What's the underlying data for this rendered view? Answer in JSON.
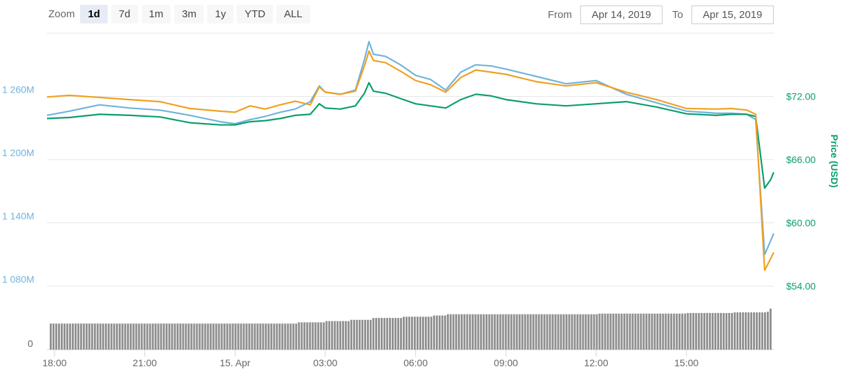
{
  "zoom": {
    "label": "Zoom",
    "buttons": [
      "1d",
      "7d",
      "1m",
      "3m",
      "1y",
      "YTD",
      "ALL"
    ],
    "active": "1d"
  },
  "range": {
    "from_label": "From",
    "from_value": "Apr 14, 2019",
    "to_label": "To",
    "to_value": "Apr 15, 2019"
  },
  "chart_data": {
    "type": "line",
    "ylabel_right": "Price (USD)",
    "left_axis": {
      "ticks": [
        "1 260M",
        "1 200M",
        "1 140M",
        "1 080M"
      ],
      "range": [
        1080,
        1320
      ]
    },
    "right_axis": {
      "ticks": [
        "$72.00",
        "$66.00",
        "$60.00",
        "$54.00"
      ],
      "range": [
        54,
        78
      ]
    },
    "volume_axis": {
      "ticks": [
        "0"
      ]
    },
    "x_axis": {
      "ticks": [
        "18:00",
        "21:00",
        "15. Apr",
        "03:00",
        "06:00",
        "09:00",
        "12:00",
        "15:00"
      ]
    },
    "colors": {
      "market_cap": "#6fb3de",
      "price": "#f0a020",
      "price_btc": "#0a9e6b",
      "volume": "#8f8f8f",
      "grid": "#e6e6e6"
    },
    "series": [
      {
        "key": "market_cap",
        "x": [
          17.75,
          18.5,
          19.5,
          20.5,
          21.5,
          22.5,
          23.5,
          24.0,
          24.5,
          25.0,
          25.5,
          26.0,
          26.5,
          26.8,
          27.0,
          27.5,
          28.0,
          28.3,
          28.45,
          28.6,
          29.0,
          29.5,
          30.0,
          30.5,
          31.0,
          31.5,
          32.0,
          32.5,
          33.0,
          34.0,
          35.0,
          36.0,
          37.0,
          38.0,
          39.0,
          40.0,
          40.5,
          41.0,
          41.3,
          41.6,
          41.8,
          41.9
        ],
        "values": [
          1242,
          1246,
          1252,
          1249,
          1247,
          1242,
          1236,
          1234,
          1238,
          1241,
          1245,
          1248,
          1255,
          1270,
          1264,
          1262,
          1266,
          1295,
          1312,
          1300,
          1298,
          1290,
          1280,
          1276,
          1266,
          1283,
          1290,
          1289,
          1286,
          1279,
          1272,
          1275,
          1262,
          1254,
          1246,
          1244,
          1244,
          1243,
          1238,
          1110,
          1123,
          1130
        ]
      },
      {
        "key": "price",
        "values": [
          71.95,
          72.1,
          71.9,
          71.7,
          71.5,
          70.85,
          70.6,
          70.5,
          71.1,
          70.8,
          71.2,
          71.55,
          71.2,
          72.9,
          72.4,
          72.2,
          72.5,
          74.9,
          76.3,
          75.4,
          75.2,
          74.4,
          73.5,
          73.1,
          72.4,
          73.8,
          74.5,
          74.3,
          74.1,
          73.4,
          73.0,
          73.3,
          72.4,
          71.7,
          70.85,
          70.8,
          70.85,
          70.7,
          70.3,
          55.5,
          56.6,
          57.2
        ]
      },
      {
        "key": "price_btc",
        "values": [
          69.9,
          70.0,
          70.3,
          70.2,
          70.05,
          69.5,
          69.3,
          69.3,
          69.6,
          69.7,
          69.9,
          70.2,
          70.3,
          71.3,
          70.9,
          70.8,
          71.1,
          72.3,
          73.3,
          72.5,
          72.3,
          71.8,
          71.3,
          71.1,
          70.9,
          71.7,
          72.2,
          72.05,
          71.7,
          71.3,
          71.1,
          71.3,
          71.5,
          71.0,
          70.35,
          70.2,
          70.3,
          70.3,
          70.1,
          63.3,
          64.1,
          64.8
        ]
      }
    ],
    "volume": {
      "x": [
        17.75,
        21.5,
        24.0,
        26.0,
        27.0,
        27.8,
        28.5,
        29.5,
        30.5,
        31.0,
        36.0,
        39.0,
        40.5,
        41.6,
        41.75,
        41.9
      ],
      "values": [
        0.42,
        0.42,
        0.42,
        0.44,
        0.46,
        0.48,
        0.51,
        0.53,
        0.55,
        0.57,
        0.58,
        0.59,
        0.6,
        0.61,
        0.66,
        0.75
      ]
    }
  }
}
